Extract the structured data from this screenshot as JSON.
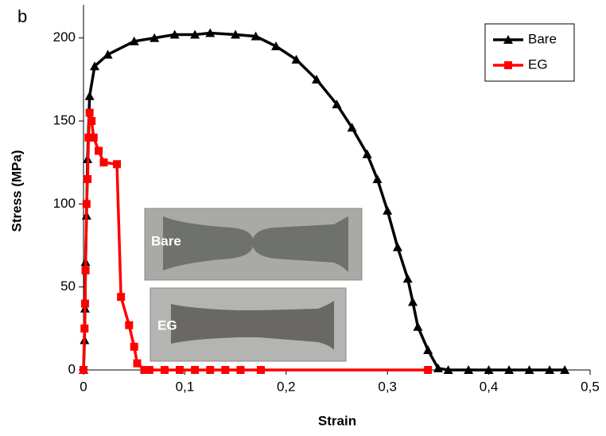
{
  "chart_data": {
    "type": "line",
    "panel_label": "b",
    "x_label": "Strain",
    "y_label": "Stress (MPa)",
    "inset_labels": [
      "Bare",
      "EG"
    ],
    "xlim": [
      0,
      0.5
    ],
    "ylim": [
      0,
      220
    ],
    "xticks": [
      0,
      {
        "value": 0.1,
        "label": "0,1"
      },
      {
        "value": 0.2,
        "label": "0,2"
      },
      {
        "value": 0.3,
        "label": "0,3"
      },
      {
        "value": 0.4,
        "label": "0,4"
      },
      {
        "value": 0.5,
        "label": "0,5"
      }
    ],
    "yticks": [
      0,
      50,
      100,
      150,
      200
    ],
    "legend": "top-right",
    "series": [
      {
        "name": "Bare",
        "color": "#000000",
        "marker": "triangle",
        "x": [
          0,
          0.001,
          0.0015,
          0.002,
          0.003,
          0.004,
          0.006,
          0.011,
          0.024,
          0.05,
          0.07,
          0.09,
          0.11,
          0.125,
          0.15,
          0.17,
          0.19,
          0.21,
          0.23,
          0.25,
          0.265,
          0.28,
          0.29,
          0.3,
          0.31,
          0.32,
          0.325,
          0.33,
          0.34,
          0.35,
          0.36,
          0.38,
          0.4,
          0.42,
          0.44,
          0.46,
          0.475
        ],
        "values": [
          0,
          18,
          37,
          65,
          93,
          127,
          165,
          183,
          190,
          198,
          200,
          202,
          202,
          203,
          202,
          201,
          195,
          187,
          175,
          160,
          146,
          130,
          115,
          96,
          74,
          55,
          41,
          26,
          12,
          1,
          0,
          0,
          0,
          0,
          0,
          0,
          0
        ]
      },
      {
        "name": "EG",
        "color": "#ff0000",
        "marker": "square",
        "x": [
          0,
          0.001,
          0.0015,
          0.002,
          0.003,
          0.004,
          0.005,
          0.006,
          0.008,
          0.01,
          0.015,
          0.02,
          0.033,
          0.037,
          0.045,
          0.05,
          0.053,
          0.06,
          0.065,
          0.08,
          0.095,
          0.11,
          0.125,
          0.14,
          0.155,
          0.175,
          0.34
        ],
        "values": [
          0,
          25,
          40,
          60,
          100,
          115,
          140,
          155,
          150,
          140,
          132,
          125,
          124,
          44,
          27,
          14,
          4,
          0,
          0,
          0,
          0,
          0,
          0,
          0,
          0,
          0,
          0
        ]
      }
    ]
  }
}
